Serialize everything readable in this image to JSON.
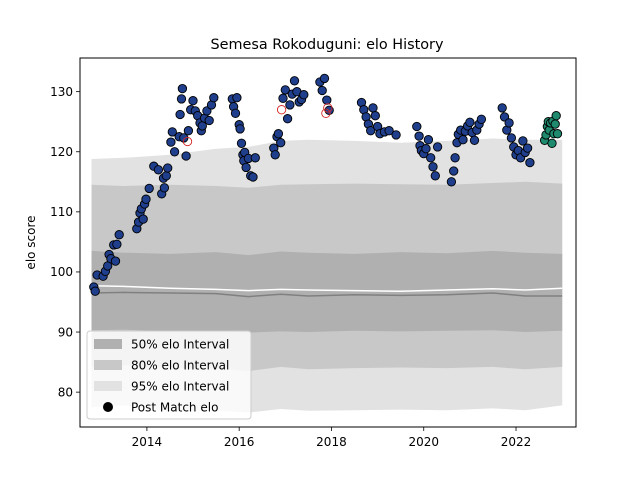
{
  "chart_data": {
    "type": "scatter",
    "title": "Semesa Rokoduguni: elo History",
    "xlabel": "",
    "ylabel": "elo score",
    "xlim": [
      2012.55,
      2023.3
    ],
    "ylim": [
      74.2,
      135.6
    ],
    "x_ticks": [
      2014,
      2016,
      2018,
      2020,
      2022
    ],
    "y_ticks": [
      80,
      90,
      100,
      110,
      120,
      130
    ],
    "grid": false,
    "legend_position": "lower-left",
    "legend": [
      {
        "label": "50% elo Interval",
        "kind": "band",
        "color": "#b0b0b0"
      },
      {
        "label": "80% elo Interval",
        "kind": "band",
        "color": "#c8c8c8"
      },
      {
        "label": "95% elo Interval",
        "kind": "band",
        "color": "#e2e2e2"
      },
      {
        "label": "Post Match elo",
        "kind": "marker",
        "color": "#000000"
      }
    ],
    "colors": {
      "point_fill": "#1f3e8c",
      "point_edge": "#000000",
      "recent_fill": "#1f8a6e",
      "hollow_edge": "#d62728",
      "mean_line": "#ffffff",
      "median_line": "#808080",
      "band_50": "#b0b0b0",
      "band_80": "#c8c8c8",
      "band_95": "#e2e2e2"
    },
    "bands": {
      "x": [
        2012.8,
        2013.5,
        2014.5,
        2015.5,
        2016.2,
        2016.9,
        2017.5,
        2018.5,
        2019.5,
        2020.5,
        2021.5,
        2022.2,
        2023.0
      ],
      "p95_low": [
        77.5,
        77.8,
        76.9,
        77.0,
        76.6,
        77.2,
        76.9,
        77.0,
        77.1,
        77.0,
        77.3,
        77.0,
        77.8
      ],
      "p80_low": [
        84.2,
        84.5,
        84.0,
        84.0,
        83.5,
        84.2,
        83.8,
        84.0,
        84.1,
        84.0,
        84.2,
        83.8,
        84.2
      ],
      "p50_low": [
        90.3,
        90.4,
        90.1,
        90.2,
        89.9,
        90.1,
        90.0,
        90.2,
        90.1,
        90.2,
        90.3,
        90.0,
        90.2
      ],
      "p50_high": [
        103.5,
        103.2,
        103.0,
        103.3,
        102.8,
        103.4,
        103.2,
        103.0,
        103.3,
        103.1,
        103.5,
        103.2,
        103.0
      ],
      "p80_high": [
        114.5,
        114.3,
        114.5,
        114.3,
        114.0,
        114.5,
        114.6,
        114.7,
        114.6,
        114.5,
        114.8,
        115.0,
        114.7
      ],
      "p95_high": [
        118.8,
        119.0,
        119.5,
        120.5,
        120.8,
        121.8,
        122.0,
        121.8,
        121.5,
        121.8,
        122.2,
        122.0,
        122.0
      ],
      "mean": [
        97.7,
        97.6,
        97.3,
        97.1,
        96.9,
        97.1,
        97.0,
        96.9,
        96.8,
        97.0,
        97.2,
        97.0,
        97.3
      ],
      "median": [
        96.5,
        96.6,
        96.5,
        96.4,
        95.9,
        96.3,
        96.0,
        96.2,
        96.1,
        96.2,
        96.5,
        96.0,
        96.0
      ]
    },
    "series": [
      {
        "name": "Post Match elo",
        "kind": "filled",
        "points": [
          [
            2012.85,
            97.5
          ],
          [
            2012.88,
            96.8
          ],
          [
            2012.92,
            99.5
          ],
          [
            2013.05,
            99.3
          ],
          [
            2013.1,
            100.1
          ],
          [
            2013.15,
            101.0
          ],
          [
            2013.18,
            102.9
          ],
          [
            2013.22,
            102.2
          ],
          [
            2013.28,
            104.5
          ],
          [
            2013.32,
            101.8
          ],
          [
            2013.35,
            104.6
          ],
          [
            2013.4,
            106.2
          ],
          [
            2013.78,
            107.2
          ],
          [
            2013.82,
            108.3
          ],
          [
            2013.85,
            109.8
          ],
          [
            2013.88,
            110.5
          ],
          [
            2013.92,
            108.8
          ],
          [
            2013.95,
            111.3
          ],
          [
            2013.98,
            112.1
          ],
          [
            2014.05,
            113.9
          ],
          [
            2014.15,
            117.6
          ],
          [
            2014.25,
            117.0
          ],
          [
            2014.32,
            113.0
          ],
          [
            2014.36,
            115.6
          ],
          [
            2014.38,
            114.0
          ],
          [
            2014.42,
            116.0
          ],
          [
            2014.45,
            117.3
          ],
          [
            2014.52,
            121.6
          ],
          [
            2014.55,
            123.3
          ],
          [
            2014.6,
            120.0
          ],
          [
            2014.7,
            122.5
          ],
          [
            2014.72,
            126.2
          ],
          [
            2014.75,
            128.8
          ],
          [
            2014.77,
            130.5
          ],
          [
            2014.8,
            122.3
          ],
          [
            2014.85,
            119.3
          ],
          [
            2014.9,
            123.5
          ],
          [
            2014.95,
            127.0
          ],
          [
            2015.0,
            128.5
          ],
          [
            2015.05,
            126.8
          ],
          [
            2015.1,
            126.0
          ],
          [
            2015.15,
            124.8
          ],
          [
            2015.18,
            123.5
          ],
          [
            2015.2,
            124.3
          ],
          [
            2015.25,
            125.6
          ],
          [
            2015.3,
            126.8
          ],
          [
            2015.35,
            125.2
          ],
          [
            2015.4,
            127.8
          ],
          [
            2015.45,
            129.0
          ],
          [
            2015.85,
            128.8
          ],
          [
            2015.88,
            127.5
          ],
          [
            2015.92,
            126.4
          ],
          [
            2015.95,
            129.0
          ],
          [
            2016.0,
            124.5
          ],
          [
            2016.02,
            123.8
          ],
          [
            2016.05,
            121.4
          ],
          [
            2016.08,
            119.5
          ],
          [
            2016.1,
            118.5
          ],
          [
            2016.12,
            119.9
          ],
          [
            2016.15,
            117.4
          ],
          [
            2016.2,
            118.9
          ],
          [
            2016.25,
            116.0
          ],
          [
            2016.3,
            115.8
          ],
          [
            2016.35,
            119.0
          ],
          [
            2016.75,
            120.6
          ],
          [
            2016.78,
            119.5
          ],
          [
            2016.82,
            122.5
          ],
          [
            2016.85,
            123.0
          ],
          [
            2016.9,
            121.5
          ],
          [
            2016.95,
            128.9
          ],
          [
            2017.0,
            130.3
          ],
          [
            2017.05,
            125.5
          ],
          [
            2017.1,
            127.8
          ],
          [
            2017.15,
            129.6
          ],
          [
            2017.2,
            131.8
          ],
          [
            2017.25,
            130.0
          ],
          [
            2017.3,
            128.3
          ],
          [
            2017.35,
            128.7
          ],
          [
            2017.4,
            129.5
          ],
          [
            2017.75,
            131.6
          ],
          [
            2017.8,
            130.2
          ],
          [
            2017.85,
            132.2
          ],
          [
            2017.9,
            128.6
          ],
          [
            2017.95,
            126.9
          ],
          [
            2018.65,
            128.2
          ],
          [
            2018.7,
            127.0
          ],
          [
            2018.75,
            125.8
          ],
          [
            2018.8,
            124.6
          ],
          [
            2018.85,
            123.5
          ],
          [
            2018.9,
            127.3
          ],
          [
            2018.95,
            126.0
          ],
          [
            2019.0,
            124.2
          ],
          [
            2019.05,
            123.0
          ],
          [
            2019.15,
            123.3
          ],
          [
            2019.25,
            123.5
          ],
          [
            2019.4,
            122.8
          ],
          [
            2019.85,
            124.2
          ],
          [
            2019.9,
            122.6
          ],
          [
            2019.92,
            121.0
          ],
          [
            2019.95,
            120.2
          ],
          [
            2020.0,
            119.7
          ],
          [
            2020.05,
            120.5
          ],
          [
            2020.1,
            122.0
          ],
          [
            2020.15,
            119.0
          ],
          [
            2020.2,
            117.5
          ],
          [
            2020.25,
            116.0
          ],
          [
            2020.3,
            120.8
          ],
          [
            2020.6,
            115.0
          ],
          [
            2020.65,
            116.8
          ],
          [
            2020.68,
            119.0
          ],
          [
            2020.72,
            121.5
          ],
          [
            2020.75,
            122.9
          ],
          [
            2020.8,
            123.6
          ],
          [
            2020.85,
            122.0
          ],
          [
            2020.9,
            123.4
          ],
          [
            2020.95,
            124.3
          ],
          [
            2021.0,
            124.9
          ],
          [
            2021.05,
            123.2
          ],
          [
            2021.1,
            121.9
          ],
          [
            2021.15,
            123.6
          ],
          [
            2021.2,
            124.6
          ],
          [
            2021.25,
            125.4
          ],
          [
            2021.7,
            127.3
          ],
          [
            2021.75,
            125.8
          ],
          [
            2021.8,
            123.6
          ],
          [
            2021.85,
            124.8
          ],
          [
            2021.9,
            122.3
          ],
          [
            2021.95,
            120.8
          ],
          [
            2022.0,
            119.5
          ],
          [
            2022.05,
            120.2
          ],
          [
            2022.1,
            119.0
          ],
          [
            2022.15,
            121.8
          ],
          [
            2022.2,
            119.9
          ],
          [
            2022.25,
            120.6
          ],
          [
            2022.3,
            118.2
          ]
        ]
      },
      {
        "name": "",
        "kind": "recent",
        "points": [
          [
            2022.62,
            121.9
          ],
          [
            2022.65,
            122.8
          ],
          [
            2022.68,
            124.2
          ],
          [
            2022.7,
            125.0
          ],
          [
            2022.72,
            123.6
          ],
          [
            2022.75,
            124.8
          ],
          [
            2022.78,
            121.4
          ],
          [
            2022.8,
            125.1
          ],
          [
            2022.82,
            123.0
          ],
          [
            2022.85,
            124.6
          ],
          [
            2022.87,
            126.0
          ],
          [
            2022.9,
            123.0
          ]
        ]
      },
      {
        "name": "",
        "kind": "hollow",
        "points": [
          [
            2014.88,
            121.7
          ],
          [
            2016.92,
            127.0
          ],
          [
            2017.88,
            126.4
          ],
          [
            2017.92,
            127.3
          ]
        ]
      }
    ]
  }
}
